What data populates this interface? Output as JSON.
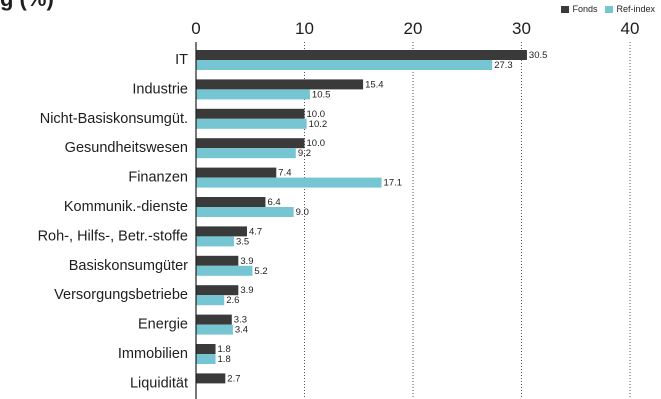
{
  "chart_data": {
    "type": "bar",
    "orientation": "horizontal",
    "title": "",
    "title_fragment": "g      (%)",
    "categories": [
      "IT",
      "Industrie",
      "Nicht-Basiskonsumgüt.",
      "Gesundheitswesen",
      "Finanzen",
      "Kommunik.-dienste",
      "Roh-, Hilfs-, Betr.-stoffe",
      "Basiskonsumgüter",
      "Versorgungsbetriebe",
      "Energie",
      "Immobilien",
      "Liquidität"
    ],
    "series": [
      {
        "name": "Fonds",
        "color": "#3a3a3a",
        "values": [
          30.5,
          15.4,
          10.0,
          10.0,
          7.4,
          6.4,
          4.7,
          3.9,
          3.9,
          3.3,
          1.8,
          2.7
        ],
        "labels": [
          "30.5",
          "15.4",
          "10.0",
          "10.0",
          "7.4",
          "6.4",
          "4.7",
          "3.9",
          "3.9",
          "3.3",
          "1.8",
          "2.7"
        ]
      },
      {
        "name": "Ref-index",
        "color": "#76c5d3",
        "values": [
          27.3,
          10.5,
          10.2,
          9.2,
          17.1,
          9.0,
          3.5,
          5.2,
          2.6,
          3.4,
          1.8,
          null
        ],
        "labels": [
          "27.3",
          "10.5",
          "10.2",
          "9.2",
          "17.1",
          "9.0",
          "3.5",
          "5.2",
          "2.6",
          "3.4",
          "1.8",
          ""
        ]
      }
    ],
    "xlim": [
      0,
      40
    ],
    "xticks": [
      "0",
      "10",
      "20",
      "30",
      "40"
    ],
    "grid": "vertical dotted",
    "legend": "top-right"
  }
}
